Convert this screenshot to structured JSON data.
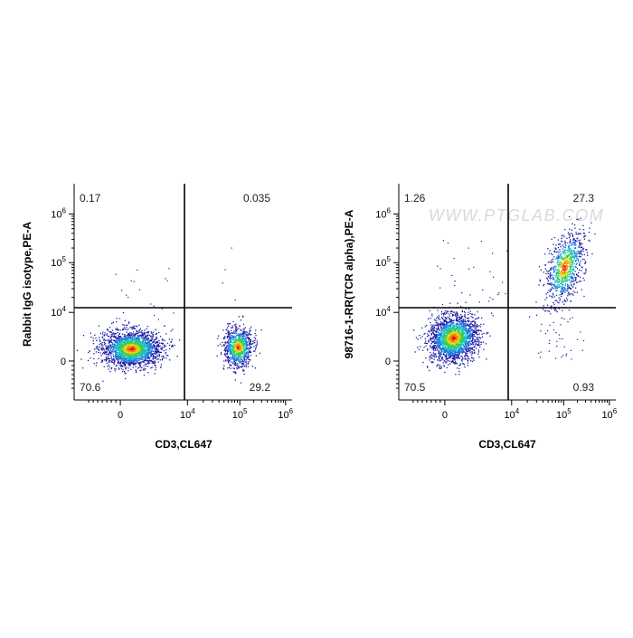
{
  "chart_data": [
    {
      "type": "scatter",
      "xlabel": "CD3,CL647",
      "ylabel": "Rabbit IgG isotype,PE-A",
      "x_scale": "biexponential",
      "y_scale": "biexponential",
      "x_tick_labels": [
        "0",
        "10^4",
        "10^5",
        "10^6"
      ],
      "y_tick_labels": [
        "0",
        "10^4",
        "10^5",
        "10^6"
      ],
      "quadrant_gate": {
        "x": 12000,
        "y": 18000
      },
      "quadrant_percentages": {
        "top_left": "0.17",
        "top_right": "0.035",
        "bottom_left": "70.6",
        "bottom_right": "29.2"
      },
      "populations": [
        {
          "name_hidden": true,
          "center_x": 1500,
          "center_y": 1500,
          "share": 0.706
        },
        {
          "name_hidden": true,
          "center_x": 100000,
          "center_y": 3000,
          "share": 0.292
        }
      ],
      "colormap": [
        "#1a1aa6",
        "#1f78d6",
        "#19c3c3",
        "#3ccc3c",
        "#d6d61e",
        "#ff7f00",
        "#e31a1c"
      ]
    },
    {
      "type": "scatter",
      "xlabel": "CD3,CL647",
      "ylabel": "98716-1-RR(TCR alpha),PE-A",
      "x_scale": "biexponential",
      "y_scale": "biexponential",
      "x_tick_labels": [
        "0",
        "10^4",
        "10^5",
        "10^6"
      ],
      "y_tick_labels": [
        "0",
        "10^4",
        "10^5",
        "10^6"
      ],
      "quadrant_gate": {
        "x": 12000,
        "y": 18000
      },
      "quadrant_percentages": {
        "top_left": "1.26",
        "top_right": "27.3",
        "bottom_left": "70.5",
        "bottom_right": "0.93"
      },
      "populations": [
        {
          "center_x": 1500,
          "center_y": 3500,
          "share": 0.705
        },
        {
          "center_x": 110000,
          "center_y": 130000,
          "share": 0.273
        }
      ],
      "watermark": "WWW.PTGLAB.COM"
    }
  ]
}
